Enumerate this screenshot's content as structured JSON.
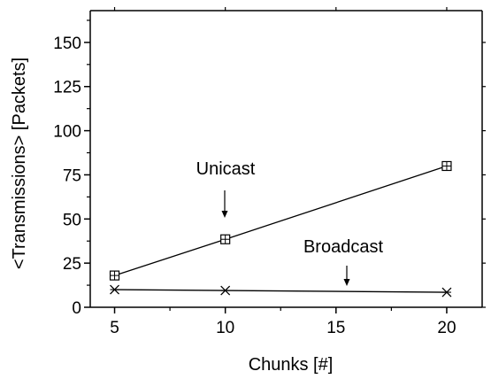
{
  "chart_data": {
    "type": "line",
    "title": "",
    "xlabel": "Chunks [#]",
    "ylabel": "<Transmissions> [Packets]",
    "xlim": [
      3.9,
      21.6
    ],
    "ylim": [
      0,
      168
    ],
    "xticks": [
      5,
      10,
      15,
      20
    ],
    "yticks": [
      0,
      25,
      50,
      75,
      100,
      125,
      150
    ],
    "x": [
      5,
      10,
      20
    ],
    "grid": false,
    "legend": "none",
    "series": [
      {
        "name": "Unicast",
        "values": [
          18,
          38.5,
          80
        ],
        "marker": "square-cross",
        "color": "#000000"
      },
      {
        "name": "Broadcast",
        "values": [
          10,
          9.5,
          8.5
        ],
        "marker": "star",
        "color": "#000000"
      }
    ],
    "annotations": [
      {
        "text": "Unicast",
        "x": 10,
        "y": 38.5
      },
      {
        "text": "Broadcast",
        "x": 15.4,
        "y": 9
      }
    ]
  }
}
